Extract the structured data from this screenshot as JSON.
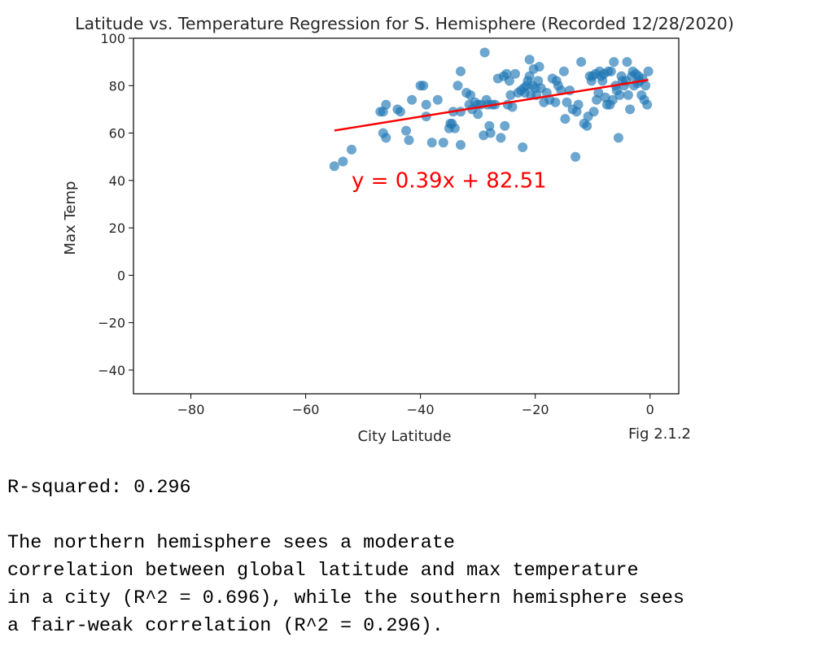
{
  "figure_caption": "Fig 2.1.2",
  "output": {
    "r_squared_line": "R-squared: 0.296",
    "analysis_lines": [
      "The northern hemisphere sees a moderate",
      "correlation between global latitude and max temperature",
      "in a city (R^2 = 0.696), while the southern hemisphere sees",
      "a fair-weak correlation (R^2 = 0.296)."
    ]
  },
  "chart_data": {
    "type": "scatter",
    "title": "Latitude vs. Temperature Regression for S. Hemisphere (Recorded 12/28/2020)",
    "xlabel": "City Latitude",
    "ylabel": "Max Temp",
    "xlim": [
      -90,
      5
    ],
    "ylim": [
      -50,
      100
    ],
    "xticks": [
      -80,
      -60,
      -40,
      -20,
      0
    ],
    "yticks": [
      -40,
      -20,
      0,
      20,
      40,
      60,
      80,
      100
    ],
    "tick_labels_x": [
      "−80",
      "−60",
      "−40",
      "−20",
      "0"
    ],
    "tick_labels_y": [
      "−40",
      "−20",
      "0",
      "20",
      "40",
      "60",
      "80",
      "100"
    ],
    "grid": false,
    "point_color": "#1f77b4",
    "line_color": "#ff0000",
    "annotation": {
      "text": "y = 0.39x + 82.51",
      "x": -52,
      "y": 37,
      "color": "#ff0000"
    },
    "regression": {
      "slope": 0.39,
      "intercept": 82.51,
      "x_range": [
        -55,
        -0.3
      ]
    },
    "points": [
      [
        -55,
        46
      ],
      [
        -53.5,
        48
      ],
      [
        -52,
        53
      ],
      [
        -47,
        69
      ],
      [
        -46.5,
        69
      ],
      [
        -46,
        72
      ],
      [
        -46.5,
        60
      ],
      [
        -46,
        58
      ],
      [
        -44,
        70
      ],
      [
        -43.5,
        69
      ],
      [
        -42.5,
        61
      ],
      [
        -42,
        57
      ],
      [
        -41.5,
        74
      ],
      [
        -40,
        80
      ],
      [
        -39.5,
        80
      ],
      [
        -39,
        72
      ],
      [
        -39,
        67
      ],
      [
        -38,
        56
      ],
      [
        -37,
        74
      ],
      [
        -36,
        56
      ],
      [
        -35,
        62
      ],
      [
        -34.8,
        64
      ],
      [
        -34.5,
        64
      ],
      [
        -34.3,
        69
      ],
      [
        -34,
        62
      ],
      [
        -33.5,
        80
      ],
      [
        -33,
        86
      ],
      [
        -33,
        69
      ],
      [
        -33,
        55
      ],
      [
        -32,
        77
      ],
      [
        -31.5,
        72
      ],
      [
        -31.3,
        76
      ],
      [
        -31,
        70
      ],
      [
        -30.5,
        73
      ],
      [
        -30,
        68
      ],
      [
        -30,
        72
      ],
      [
        -29.5,
        72
      ],
      [
        -29,
        59
      ],
      [
        -28.8,
        94
      ],
      [
        -28.5,
        74
      ],
      [
        -28.3,
        72
      ],
      [
        -28,
        63
      ],
      [
        -27.8,
        60
      ],
      [
        -27.5,
        72
      ],
      [
        -27,
        72
      ],
      [
        -26.5,
        83
      ],
      [
        -26,
        58
      ],
      [
        -25.5,
        84
      ],
      [
        -25.3,
        63
      ],
      [
        -25,
        85
      ],
      [
        -24.8,
        72
      ],
      [
        -24.5,
        82
      ],
      [
        -24.3,
        76
      ],
      [
        -24,
        71
      ],
      [
        -23.5,
        85
      ],
      [
        -23,
        77
      ],
      [
        -22.5,
        78
      ],
      [
        -22.2,
        54
      ],
      [
        -22,
        79
      ],
      [
        -21.8,
        77
      ],
      [
        -21.5,
        80
      ],
      [
        -21.3,
        82
      ],
      [
        -21,
        91
      ],
      [
        -21,
        84
      ],
      [
        -20.8,
        76
      ],
      [
        -20.5,
        80
      ],
      [
        -20.3,
        87
      ],
      [
        -20,
        79
      ],
      [
        -19.8,
        76
      ],
      [
        -19.5,
        82
      ],
      [
        -19.3,
        88
      ],
      [
        -19,
        79
      ],
      [
        -18.5,
        73
      ],
      [
        -18,
        77
      ],
      [
        -17.5,
        74
      ],
      [
        -17,
        83
      ],
      [
        -16.5,
        73
      ],
      [
        -16.3,
        82
      ],
      [
        -16,
        80
      ],
      [
        -15.5,
        78
      ],
      [
        -15,
        86
      ],
      [
        -14.8,
        66
      ],
      [
        -14.5,
        73
      ],
      [
        -14,
        78
      ],
      [
        -13.5,
        70
      ],
      [
        -13,
        50
      ],
      [
        -12.8,
        69
      ],
      [
        -12.5,
        72
      ],
      [
        -12,
        90
      ],
      [
        -11.5,
        64
      ],
      [
        -11,
        63
      ],
      [
        -10.8,
        67
      ],
      [
        -10.5,
        84
      ],
      [
        -10.2,
        82
      ],
      [
        -10,
        84
      ],
      [
        -9.8,
        69
      ],
      [
        -9.5,
        85
      ],
      [
        -9.3,
        74
      ],
      [
        -9,
        77
      ],
      [
        -8.8,
        86
      ],
      [
        -8.5,
        84
      ],
      [
        -8.3,
        82
      ],
      [
        -8,
        85
      ],
      [
        -7.8,
        75
      ],
      [
        -7.5,
        72
      ],
      [
        -7.3,
        86
      ],
      [
        -7,
        72
      ],
      [
        -6.8,
        86
      ],
      [
        -6.5,
        74
      ],
      [
        -6.3,
        90
      ],
      [
        -6,
        80
      ],
      [
        -5.8,
        78
      ],
      [
        -5.5,
        58
      ],
      [
        -5.3,
        76
      ],
      [
        -5,
        84
      ],
      [
        -4.8,
        82
      ],
      [
        -4.5,
        80
      ],
      [
        -4.2,
        82
      ],
      [
        -4,
        90
      ],
      [
        -3.8,
        76
      ],
      [
        -3.5,
        70
      ],
      [
        -3.2,
        84
      ],
      [
        -3,
        86
      ],
      [
        -2.8,
        80
      ],
      [
        -2.5,
        85
      ],
      [
        -2.2,
        81
      ],
      [
        -2,
        84
      ],
      [
        -1.8,
        82
      ],
      [
        -1.5,
        76
      ],
      [
        -1.3,
        83
      ],
      [
        -1,
        74
      ],
      [
        -0.8,
        80
      ],
      [
        -0.5,
        72
      ],
      [
        -0.3,
        86
      ]
    ]
  }
}
